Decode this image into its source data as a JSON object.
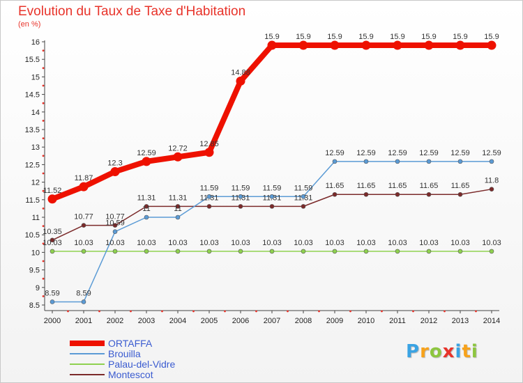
{
  "chart_data": {
    "type": "line",
    "title": "Evolution du Taux de Taxe d'Habitation",
    "subtitle": "(en %)",
    "x": [
      "2000",
      "2001",
      "2002",
      "2003",
      "2004",
      "2005",
      "2006",
      "2007",
      "2008",
      "2009",
      "2010",
      "2011",
      "2012",
      "2013",
      "2014"
    ],
    "yticks": [
      "8.5",
      "9",
      "9.5",
      "10",
      "10.5",
      "11",
      "11.5",
      "12",
      "12.5",
      "13",
      "13.5",
      "14",
      "14.5",
      "15",
      "15.5",
      "16"
    ],
    "ylim": [
      8.5,
      16
    ],
    "grid": false,
    "legend_position": "bottom-left",
    "series": [
      {
        "name": "ORTAFFA",
        "color": "#ee1100",
        "values": [
          11.52,
          11.87,
          12.3,
          12.59,
          12.72,
          12.85,
          14.88,
          15.9,
          15.9,
          15.9,
          15.9,
          15.9,
          15.9,
          15.9,
          15.9
        ],
        "labels": [
          "11.52",
          "11.87",
          "12.3",
          "12.59",
          "12.72",
          "12.85",
          "14.88",
          "15.9",
          "15.9",
          "15.9",
          "15.9",
          "15.9",
          "15.9",
          "15.9",
          "15.9"
        ]
      },
      {
        "name": "Brouilla",
        "color": "#5b9bd5",
        "values": [
          8.59,
          8.59,
          10.59,
          11,
          11,
          11.59,
          11.59,
          11.59,
          11.59,
          12.59,
          12.59,
          12.59,
          12.59,
          12.59,
          12.59
        ],
        "labels": [
          "8.59",
          "8.59",
          "10.59",
          "11",
          "11",
          "11.59",
          "11.59",
          "11.59",
          "11.59",
          "12.59",
          "12.59",
          "12.59",
          "12.59",
          "12.59",
          "12.59"
        ]
      },
      {
        "name": "Palau-del-Vidre",
        "color": "#8fd14f",
        "values": [
          10.03,
          10.03,
          10.03,
          10.03,
          10.03,
          10.03,
          10.03,
          10.03,
          10.03,
          10.03,
          10.03,
          10.03,
          10.03,
          10.03,
          10.03
        ],
        "labels": [
          "10.03",
          "10.03",
          "10.03",
          "10.03",
          "10.03",
          "10.03",
          "10.03",
          "10.03",
          "10.03",
          "10.03",
          "10.03",
          "10.03",
          "10.03",
          "10.03",
          "10.03"
        ]
      },
      {
        "name": "Montescot",
        "color": "#7b2a2a",
        "values": [
          10.35,
          10.77,
          10.77,
          11.31,
          11.31,
          11.31,
          11.31,
          11.31,
          11.31,
          11.65,
          11.65,
          11.65,
          11.65,
          11.65,
          11.8
        ],
        "labels": [
          "10.35",
          "10.77",
          "10.77",
          "11.31",
          "11.31",
          "11.31",
          "11.31",
          "11.31",
          "11.31",
          "11.65",
          "11.65",
          "11.65",
          "11.65",
          "11.65",
          "11.8"
        ]
      }
    ]
  },
  "brand": {
    "letters": [
      "P",
      "r",
      "o",
      "x",
      "i",
      "t",
      "i"
    ],
    "colors": [
      "#3aa3e3",
      "#f7a21b",
      "#8dc63f",
      "#e8332a",
      "#3aa3e3",
      "#f7a21b",
      "#8dc63f"
    ]
  }
}
